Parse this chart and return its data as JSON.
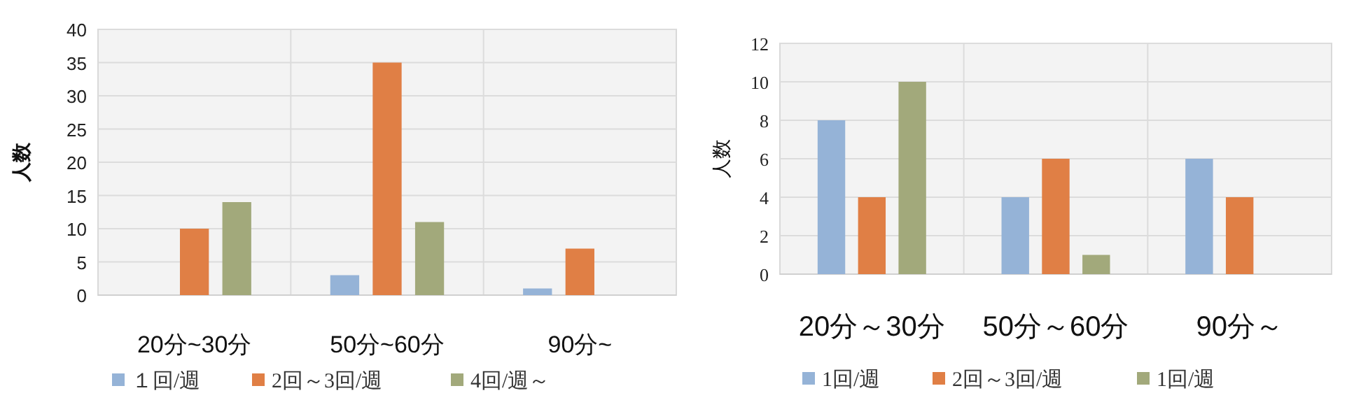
{
  "chart_data": [
    {
      "type": "bar",
      "ylabel": "人数",
      "categories": [
        "20分~30分",
        "50分~60分",
        "90分~"
      ],
      "ylim": [
        0,
        40
      ],
      "yticks": [
        0,
        5,
        10,
        15,
        20,
        25,
        30,
        35,
        40
      ],
      "grid": true,
      "legend": "bottom",
      "series": [
        {
          "name": "１回/週",
          "color": "#95b3d7",
          "values": [
            0,
            3,
            1
          ]
        },
        {
          "name": "2回～3回/週",
          "color": "#e07f45",
          "values": [
            10,
            35,
            7
          ]
        },
        {
          "name": "4回/週～",
          "color": "#a2a97b",
          "values": [
            14,
            11,
            0
          ]
        }
      ]
    },
    {
      "type": "bar",
      "ylabel": "人数",
      "categories": [
        "20分～30分",
        "50分～60分",
        "90分～"
      ],
      "ylim": [
        0,
        12
      ],
      "yticks": [
        0,
        2,
        4,
        6,
        8,
        10,
        12
      ],
      "grid": true,
      "legend": "bottom",
      "series": [
        {
          "name": "1回/週",
          "color": "#95b3d7",
          "values": [
            8,
            4,
            6
          ]
        },
        {
          "name": "2回～3回/週",
          "color": "#e07f45",
          "values": [
            4,
            6,
            4
          ]
        },
        {
          "name": "1回/週",
          "color": "#a2a97b",
          "values": [
            10,
            1,
            0
          ]
        }
      ]
    }
  ]
}
